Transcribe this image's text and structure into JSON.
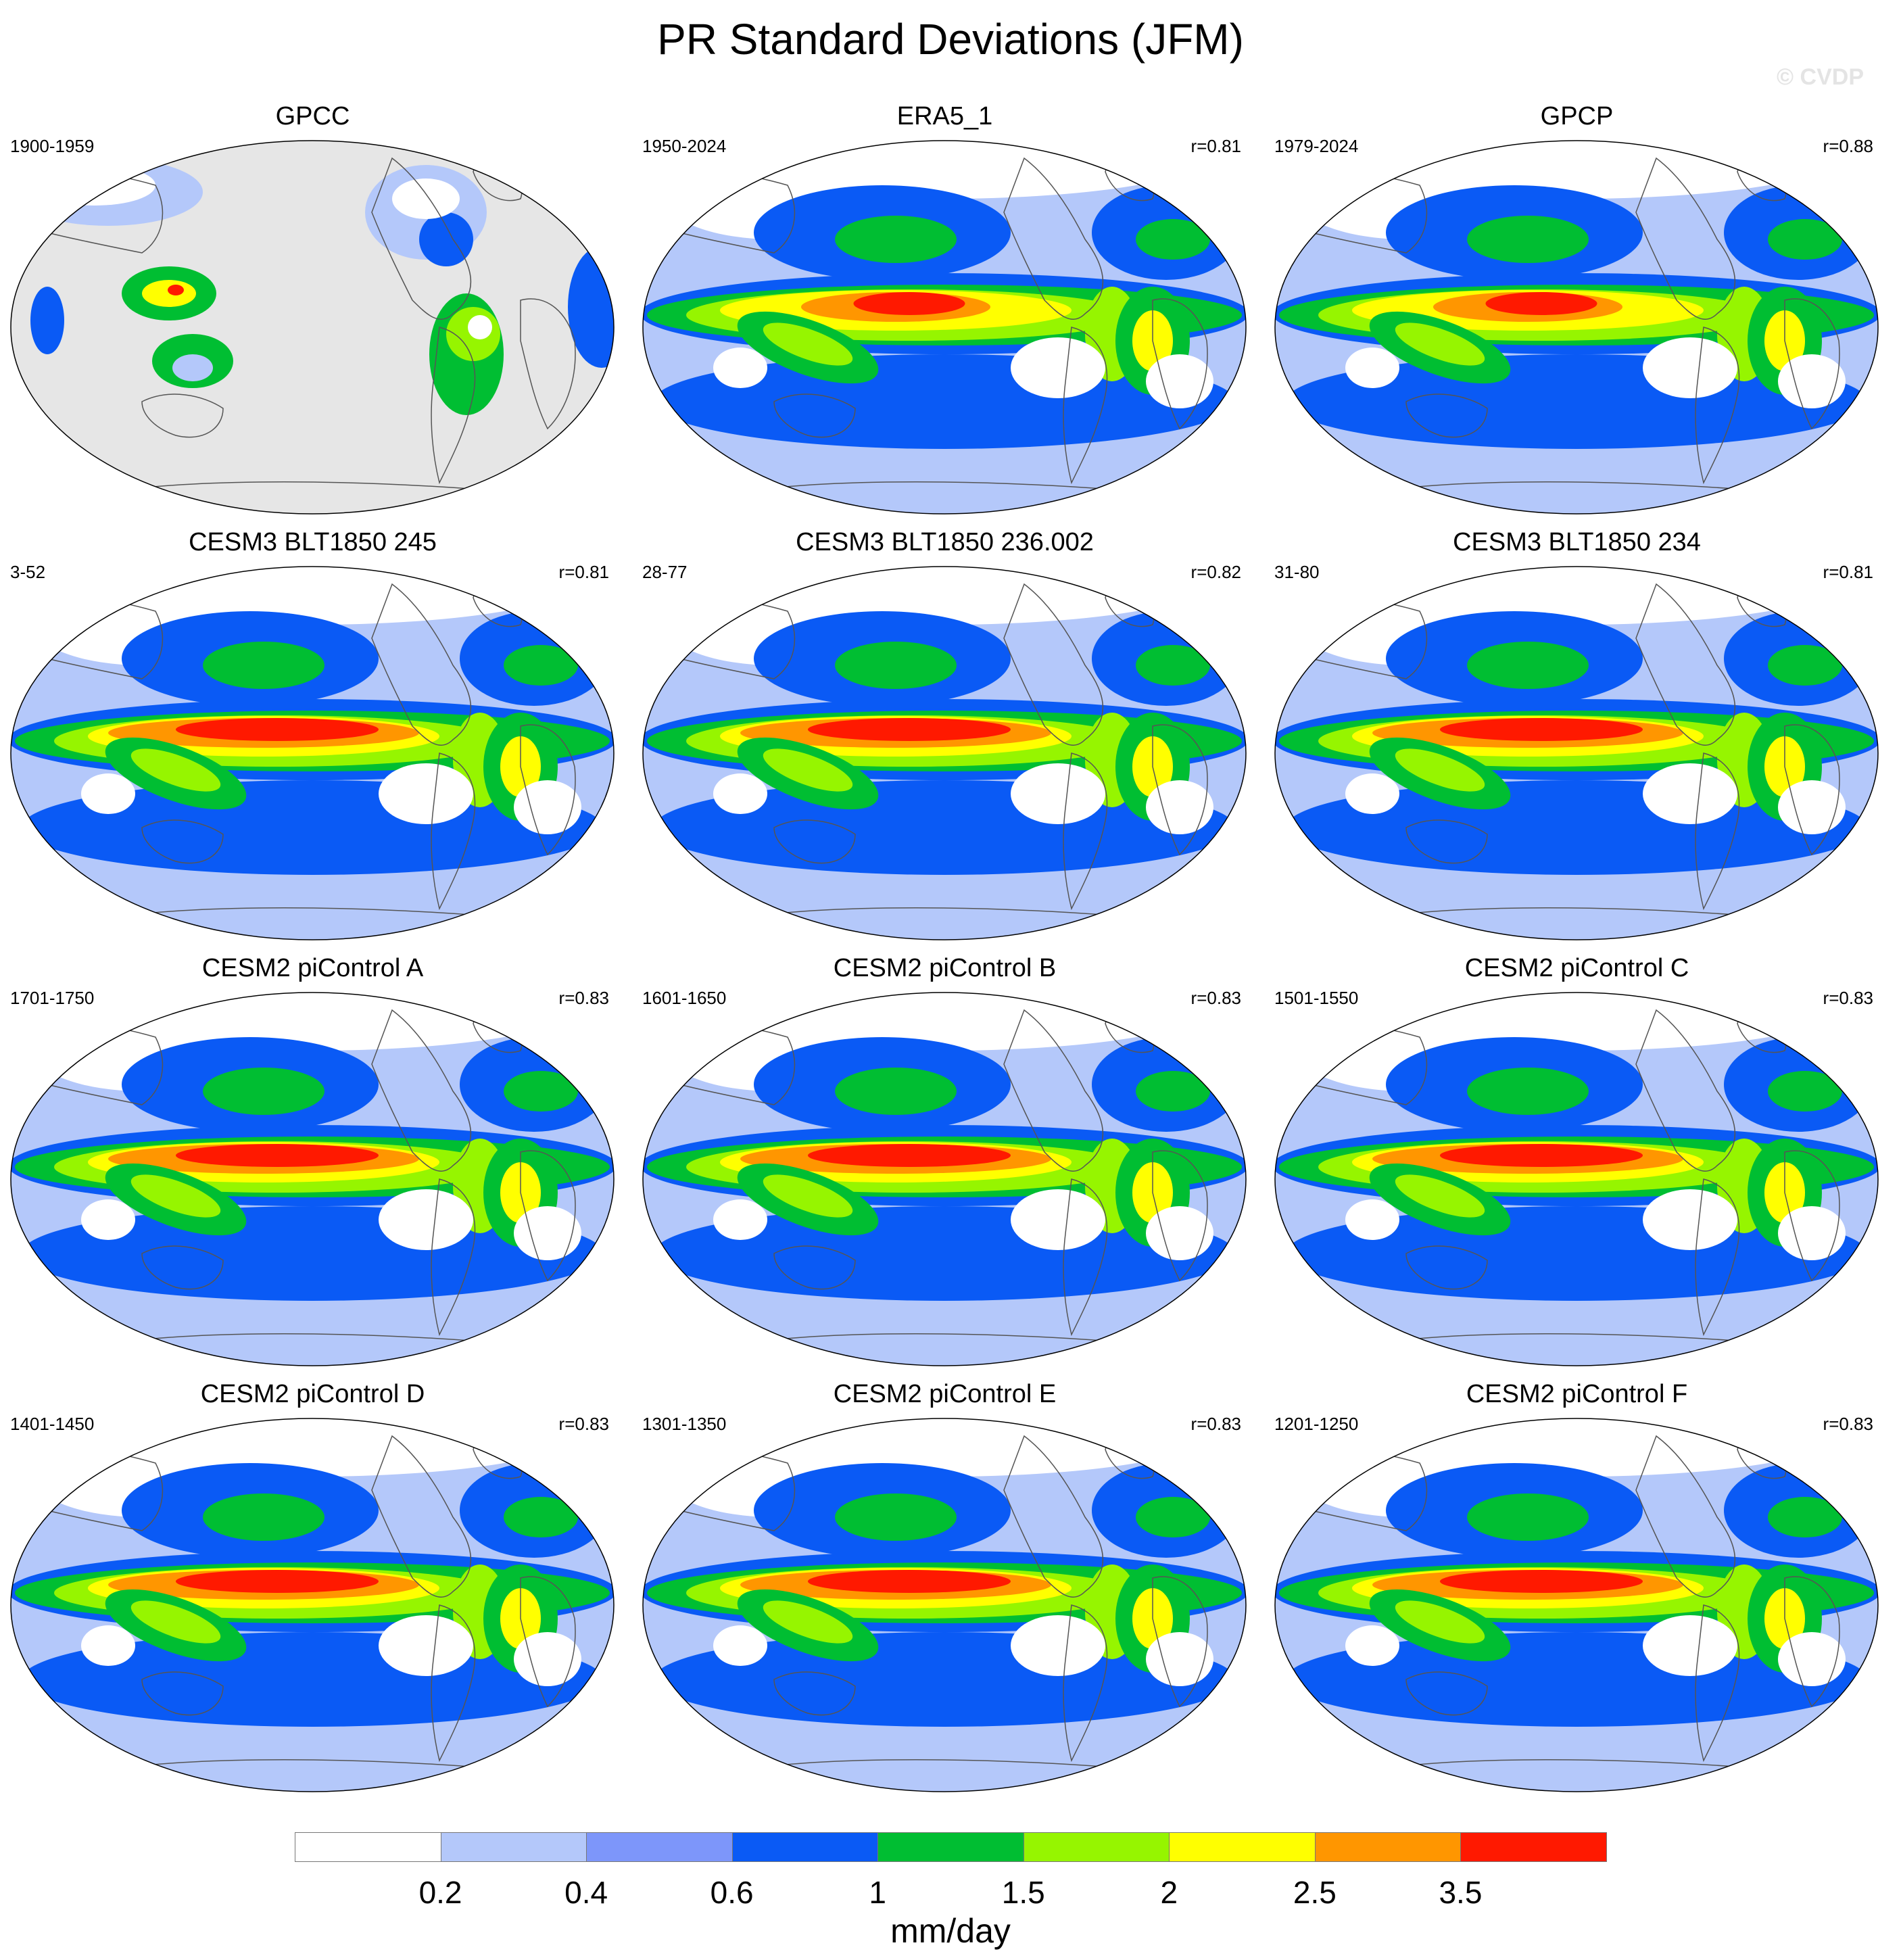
{
  "title": "PR Standard Deviations (JFM)",
  "watermark": "© CVDP",
  "units": "mm/day",
  "colorbar": {
    "colors": [
      "#ffffff",
      "#b4c8fa",
      "#7d96fa",
      "#0a5af5",
      "#00be32",
      "#96f500",
      "#ffff00",
      "#ff9600",
      "#ff1900"
    ],
    "labels": [
      "0.2",
      "0.4",
      "0.6",
      "1",
      "1.5",
      "2",
      "2.5",
      "3.5"
    ]
  },
  "land_gray": "#e6e6e6",
  "panels": [
    {
      "title": "GPCC",
      "years": "1900-1959",
      "r": ""
    },
    {
      "title": "ERA5_1",
      "years": "1950-2024",
      "r": "r=0.81"
    },
    {
      "title": "GPCP",
      "years": "1979-2024",
      "r": "r=0.88"
    },
    {
      "title": "CESM3 BLT1850 245",
      "years": "3-52",
      "r": "r=0.81"
    },
    {
      "title": "CESM3 BLT1850 236.002",
      "years": "28-77",
      "r": "r=0.82"
    },
    {
      "title": "CESM3 BLT1850 234",
      "years": "31-80",
      "r": "r=0.81"
    },
    {
      "title": "CESM2 piControl A",
      "years": "1701-1750",
      "r": "r=0.83"
    },
    {
      "title": "CESM2 piControl B",
      "years": "1601-1650",
      "r": "r=0.83"
    },
    {
      "title": "CESM2 piControl C",
      "years": "1501-1550",
      "r": "r=0.83"
    },
    {
      "title": "CESM2 piControl D",
      "years": "1401-1450",
      "r": "r=0.83"
    },
    {
      "title": "CESM2 piControl E",
      "years": "1301-1350",
      "r": "r=0.83"
    },
    {
      "title": "CESM2 piControl F",
      "years": "1201-1250",
      "r": "r=0.83"
    }
  ]
}
